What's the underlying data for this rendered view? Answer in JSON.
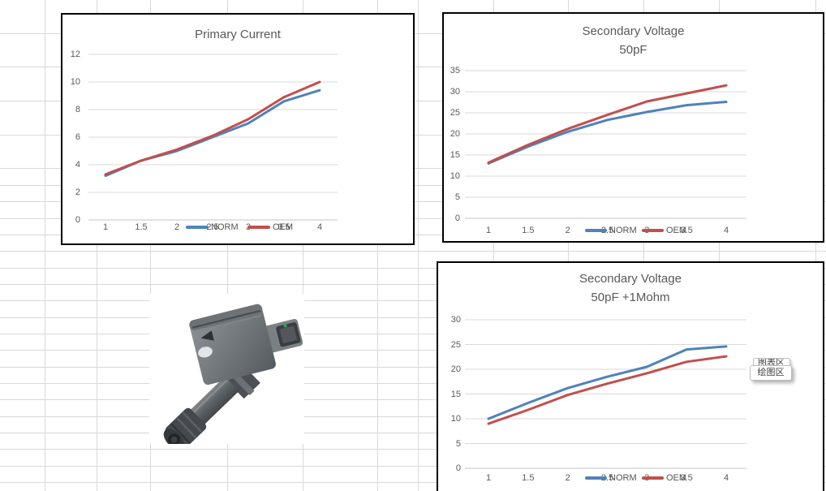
{
  "colors": {
    "norm_series": "#4F81BD",
    "oem_series": "#C0504D",
    "axis_text": "#595959",
    "title_text": "#595959",
    "chart_gridline": "#d9d9d9",
    "chart_axis_line": "#c6c6c6",
    "worksheet_gridline": "#d8d8d8",
    "chart_border": "#000000",
    "connector_pin_dot": "#2e9e4f"
  },
  "chart_data": [
    {
      "type": "line",
      "title_lines": [
        "Primary Current"
      ],
      "x": [
        1,
        1.5,
        2,
        2.5,
        3,
        3.5,
        4
      ],
      "x_tick_labels": [
        "1",
        "1.5",
        "2",
        "2.5",
        "3",
        "3.5",
        "4"
      ],
      "y_tick_labels": [
        "0",
        "2",
        "4",
        "6",
        "8",
        "10",
        "12"
      ],
      "ylim": [
        0,
        12
      ],
      "grid": true,
      "legend_position": "bottom-center-overlapping-x-axis",
      "series": [
        {
          "name": "NORM",
          "color": "#4F81BD",
          "values": [
            3.2,
            4.3,
            5.0,
            6.0,
            7.0,
            8.6,
            9.4
          ]
        },
        {
          "name": "OEM",
          "color": "#C0504D",
          "values": [
            3.3,
            4.3,
            5.1,
            6.1,
            7.3,
            8.9,
            10.0
          ]
        }
      ]
    },
    {
      "type": "line",
      "title_lines": [
        "Secondary Voltage",
        "50pF"
      ],
      "x": [
        1,
        1.5,
        2,
        2.5,
        3,
        3.5,
        4
      ],
      "x_tick_labels": [
        "1",
        "1.5",
        "2",
        "2.5",
        "3",
        "3.5",
        "4"
      ],
      "y_tick_labels": [
        "0",
        "5",
        "10",
        "15",
        "20",
        "25",
        "30",
        "35"
      ],
      "ylim": [
        0,
        35
      ],
      "grid": true,
      "legend_position": "bottom-center-overlapping-x-axis",
      "series": [
        {
          "name": "NORM",
          "color": "#4F81BD",
          "values": [
            13.0,
            17.0,
            20.5,
            23.3,
            25.2,
            26.8,
            27.6
          ]
        },
        {
          "name": "OEM",
          "color": "#C0504D",
          "values": [
            13.2,
            17.4,
            21.2,
            24.5,
            27.7,
            29.6,
            31.5
          ]
        }
      ]
    },
    {
      "type": "line",
      "title_lines": [
        "Secondary Voltage",
        "50pF +1Mohm"
      ],
      "x": [
        1,
        1.5,
        2,
        2.5,
        3,
        3.5,
        4
      ],
      "x_tick_labels": [
        "1",
        "1.5",
        "2",
        "2.5",
        "3",
        "3.5",
        "4"
      ],
      "y_tick_labels": [
        "0",
        "5",
        "10",
        "15",
        "20",
        "25",
        "30"
      ],
      "ylim": [
        0,
        30
      ],
      "grid": true,
      "legend_position": "bottom-center-overlapping-x-axis",
      "series": [
        {
          "name": "NORM",
          "color": "#4F81BD",
          "values": [
            10.0,
            13.2,
            16.2,
            18.5,
            20.5,
            24.0,
            24.6
          ]
        },
        {
          "name": "OEM",
          "color": "#C0504D",
          "values": [
            9.0,
            11.8,
            14.8,
            17.1,
            19.2,
            21.5,
            22.6
          ]
        }
      ]
    }
  ],
  "tooltips": [
    {
      "label": "图表区"
    },
    {
      "label": "绘图区"
    }
  ],
  "image": {
    "description": "ignition coil product photo"
  }
}
